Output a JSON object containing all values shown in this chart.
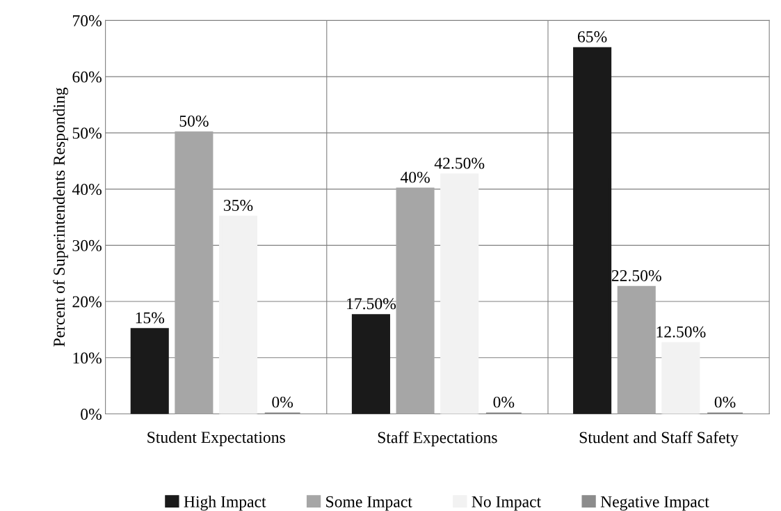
{
  "chart_data": {
    "type": "bar",
    "ylabel": "Percent of Superintendents Responding",
    "categories": [
      "Student Expectations",
      "Staff Expectations",
      "Student and Staff Safety"
    ],
    "series": [
      {
        "name": "High Impact",
        "color": "#1a1a1a",
        "values": [
          15,
          17.5,
          65
        ],
        "value_labels": [
          "15%",
          "17.50%",
          "65%"
        ]
      },
      {
        "name": "Some Impact",
        "color": "#a6a6a6",
        "values": [
          50,
          40,
          22.5
        ],
        "value_labels": [
          "50%",
          "40%",
          "22.50%"
        ]
      },
      {
        "name": "No Impact",
        "color": "#f2f2f2",
        "values": [
          35,
          42.5,
          12.5
        ],
        "value_labels": [
          "35%",
          "42.50%",
          "12.50%"
        ]
      },
      {
        "name": "Negative Impact",
        "color": "#8c8c8c",
        "values": [
          0,
          0,
          0
        ],
        "value_labels": [
          "0%",
          "0%",
          "0%"
        ]
      }
    ],
    "ylim": [
      0,
      70
    ],
    "yticks": [
      {
        "value": 0,
        "label": "0%"
      },
      {
        "value": 10,
        "label": "10%"
      },
      {
        "value": 20,
        "label": "20%"
      },
      {
        "value": 30,
        "label": "30%"
      },
      {
        "value": 40,
        "label": "40%"
      },
      {
        "value": 50,
        "label": "50%"
      },
      {
        "value": 60,
        "label": "60%"
      },
      {
        "value": 70,
        "label": "70%"
      }
    ],
    "grid": true,
    "legend": "bottom"
  }
}
